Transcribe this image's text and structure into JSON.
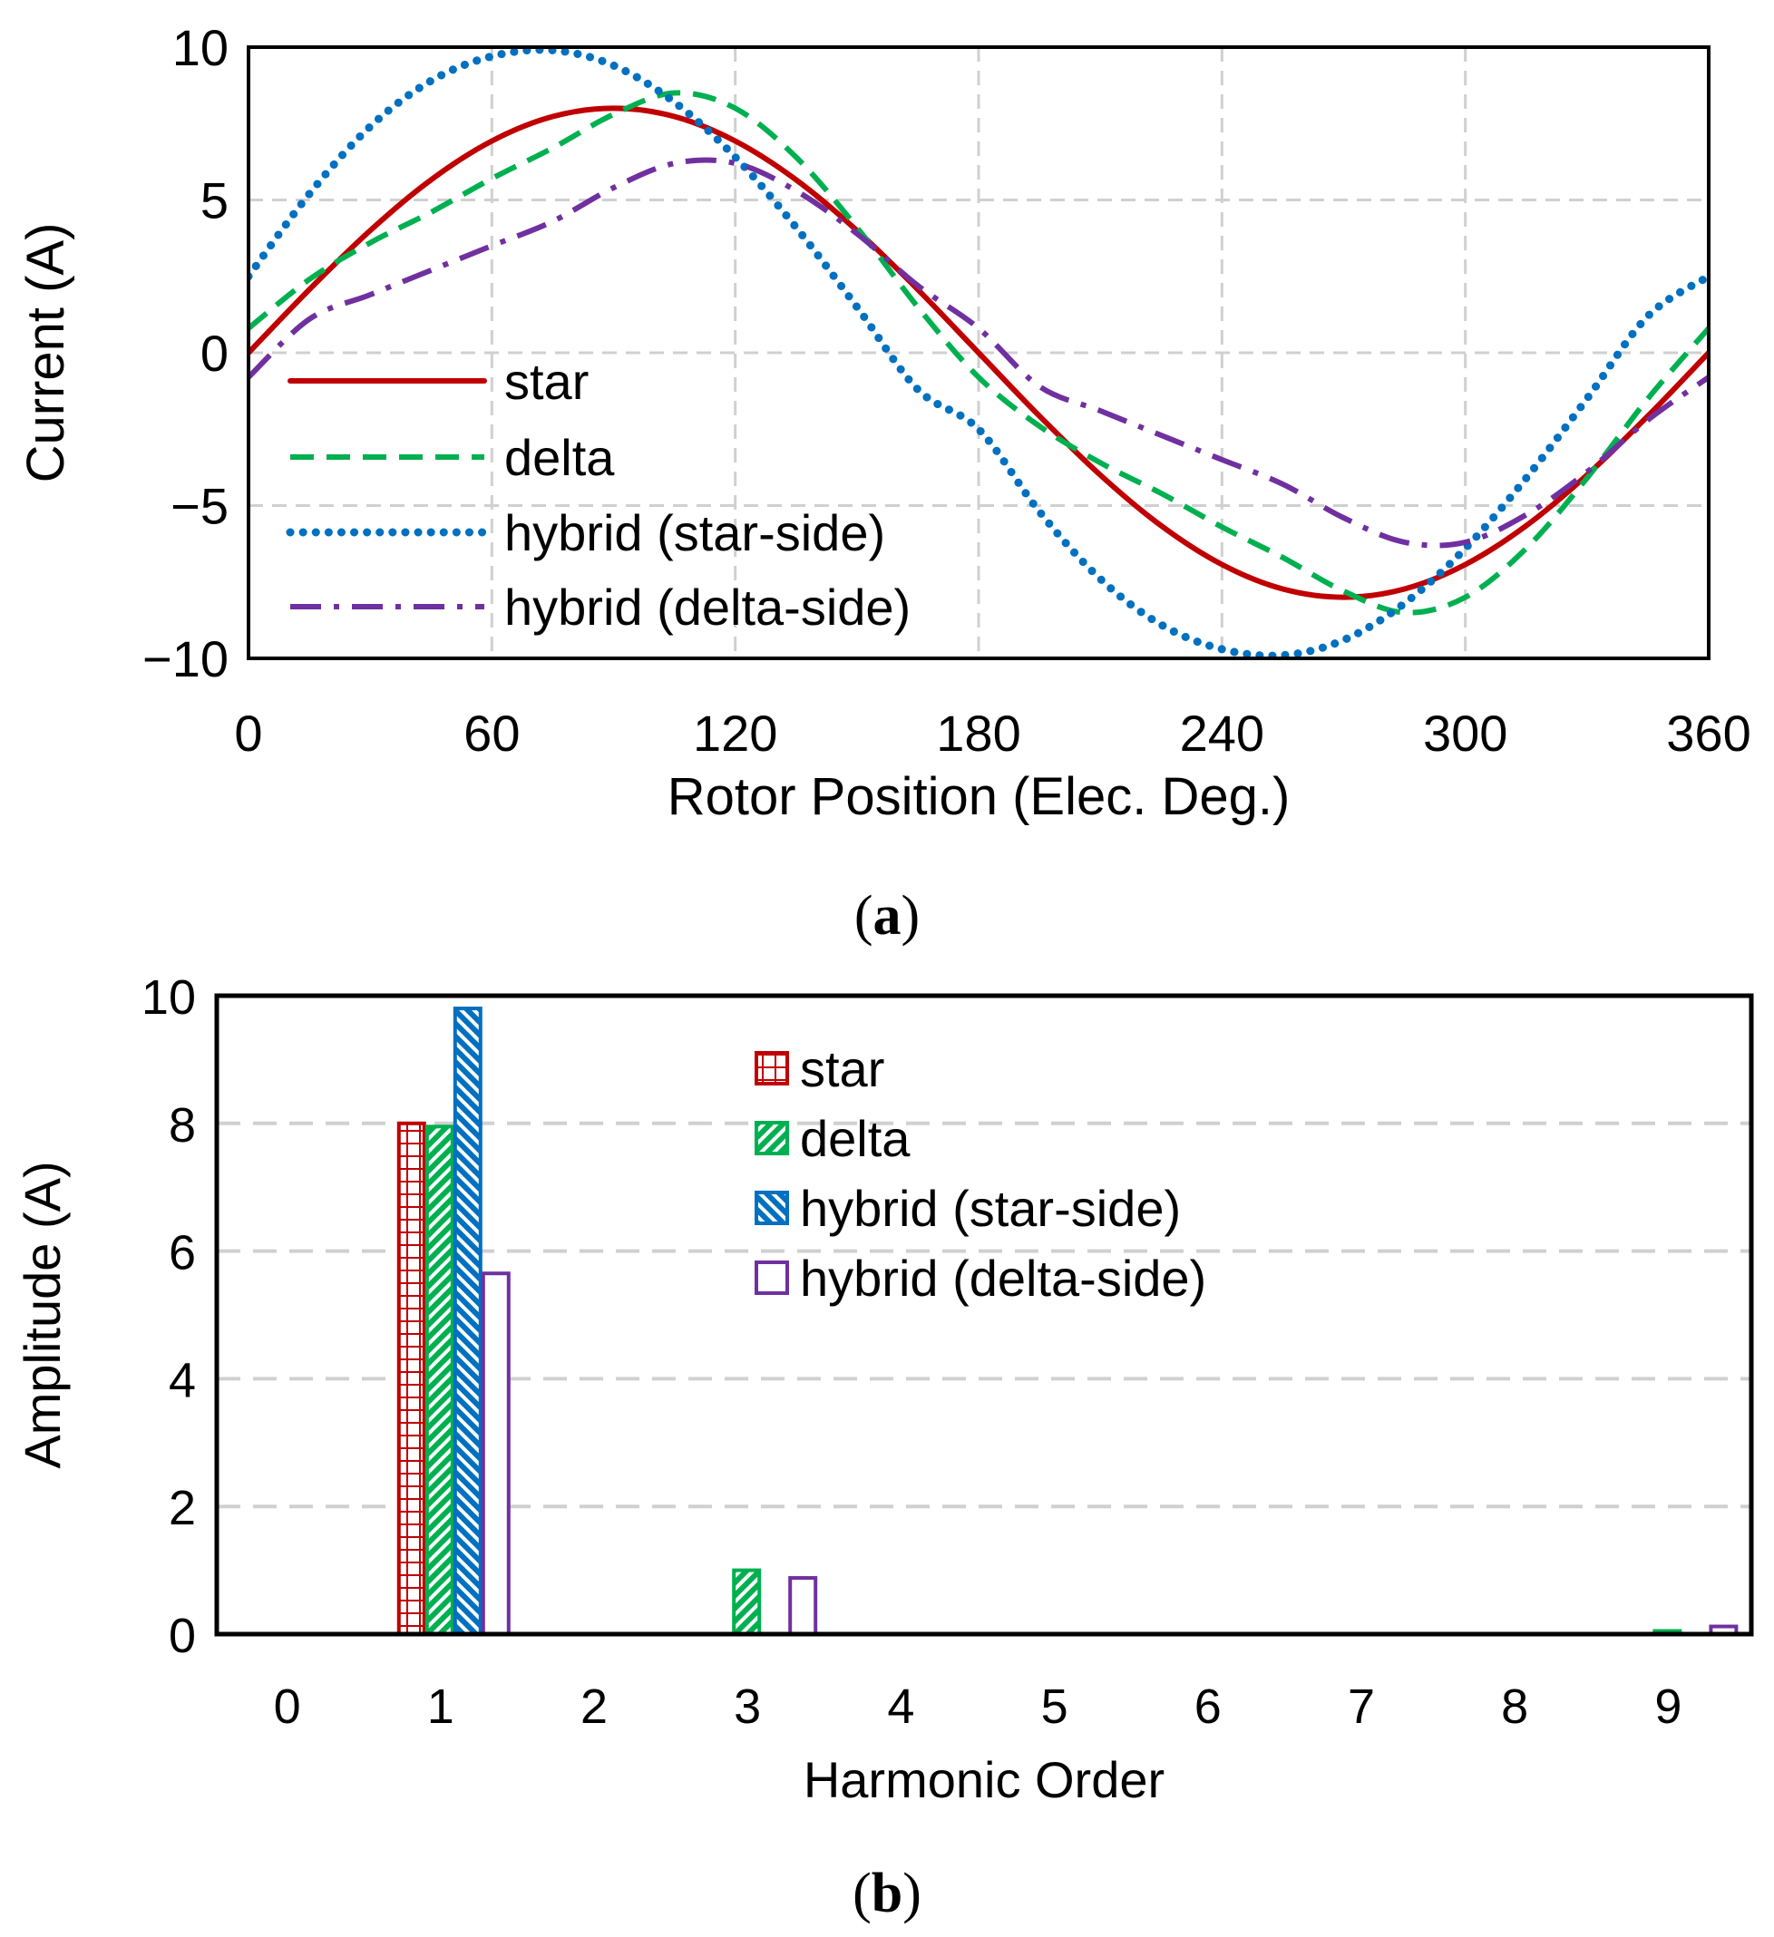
{
  "colors": {
    "star": "#c00000",
    "delta": "#00b050",
    "hybrid_star": "#0070c0",
    "hybrid_delta": "#7030a0",
    "grid": "#d0d0d0",
    "axis": "#000000"
  },
  "chart_data": [
    {
      "id": "a",
      "caption_open": "(",
      "caption_letter": "a",
      "caption_close": ")",
      "type": "line",
      "xlabel": "Rotor Position (Elec. Deg.)",
      "ylabel": "Current (A)",
      "xlim": [
        0,
        360
      ],
      "ylim": [
        -10,
        10
      ],
      "xticks": [
        0,
        60,
        120,
        180,
        240,
        300,
        360
      ],
      "xtick_labels": [
        "0",
        "60",
        "120",
        "180",
        "240",
        "300",
        "360"
      ],
      "yticks": [
        10,
        5,
        0,
        -5,
        -10
      ],
      "ytick_labels": [
        "10",
        "5",
        "0",
        "−5",
        "−10"
      ],
      "grid": true,
      "legend_position": "left",
      "series": [
        {
          "name": "star",
          "style": "solid",
          "color_key": "star",
          "x": [
            0,
            15,
            30,
            45,
            60,
            75,
            90,
            105,
            120,
            135,
            150,
            165,
            180,
            195,
            210,
            225,
            240,
            255,
            270,
            285,
            300,
            315,
            330,
            345,
            360
          ],
          "y": [
            0,
            2.07,
            4.0,
            5.66,
            6.93,
            7.73,
            8.0,
            7.73,
            6.93,
            5.66,
            4.0,
            2.07,
            0,
            -2.07,
            -4.0,
            -5.66,
            -6.93,
            -7.73,
            -8.0,
            -7.73,
            -6.93,
            -5.66,
            -4.0,
            -2.07,
            0
          ]
        },
        {
          "name": "delta",
          "style": "dashed",
          "color_key": "delta",
          "x": [
            0,
            15,
            30,
            45,
            60,
            75,
            90,
            105,
            120,
            135,
            150,
            165,
            180,
            195,
            210,
            225,
            240,
            255,
            270,
            285,
            300,
            315,
            330,
            345,
            360
          ],
          "y": [
            0.8,
            2.4,
            3.6,
            4.6,
            5.7,
            6.7,
            7.8,
            8.5,
            8.0,
            6.4,
            4.1,
            1.5,
            -0.8,
            -2.4,
            -3.6,
            -4.6,
            -5.7,
            -6.7,
            -7.8,
            -8.5,
            -8.0,
            -6.4,
            -4.1,
            -1.5,
            0.8
          ]
        },
        {
          "name": "hybrid (star-side)",
          "style": "dotted",
          "color_key": "hybrid_star",
          "x": [
            0,
            15,
            30,
            45,
            60,
            75,
            90,
            105,
            120,
            135,
            150,
            165,
            180,
            195,
            210,
            225,
            240,
            255,
            270,
            285,
            300,
            315,
            330,
            345,
            360
          ],
          "y": [
            2.5,
            5.2,
            7.4,
            8.9,
            9.7,
            9.9,
            9.4,
            8.2,
            6.4,
            4.1,
            1.5,
            -1.2,
            -2.5,
            -5.2,
            -7.4,
            -8.9,
            -9.7,
            -9.9,
            -9.4,
            -8.2,
            -6.4,
            -4.1,
            -1.5,
            1.2,
            2.5
          ]
        },
        {
          "name": "hybrid (delta-side)",
          "style": "dashdot",
          "color_key": "hybrid_delta",
          "x": [
            0,
            15,
            30,
            45,
            60,
            75,
            90,
            105,
            120,
            135,
            150,
            165,
            180,
            195,
            210,
            225,
            240,
            255,
            270,
            285,
            300,
            315,
            330,
            345,
            360
          ],
          "y": [
            -0.8,
            1.1,
            1.9,
            2.7,
            3.5,
            4.3,
            5.4,
            6.2,
            6.2,
            5.3,
            3.9,
            2.2,
            0.8,
            -1.1,
            -1.9,
            -2.7,
            -3.5,
            -4.3,
            -5.4,
            -6.2,
            -6.2,
            -5.3,
            -3.9,
            -2.2,
            -0.8
          ]
        }
      ]
    },
    {
      "id": "b",
      "caption_open": "(",
      "caption_letter": "b",
      "caption_close": ")",
      "type": "bar",
      "xlabel": "Harmonic Order",
      "ylabel": "Amplitude (A)",
      "categories": [
        "0",
        "1",
        "2",
        "3",
        "4",
        "5",
        "6",
        "7",
        "8",
        "9"
      ],
      "ylim": [
        0,
        10
      ],
      "yticks": [
        10,
        8,
        6,
        4,
        2,
        0
      ],
      "ytick_labels": [
        "10",
        "8",
        "6",
        "4",
        "2",
        "0"
      ],
      "grid": true,
      "legend_position": "top-right",
      "series": [
        {
          "name": "star",
          "pattern": "grid",
          "color_key": "star",
          "values": [
            0,
            8.0,
            0,
            0,
            0,
            0,
            0,
            0,
            0,
            0
          ]
        },
        {
          "name": "delta",
          "pattern": "diag",
          "color_key": "delta",
          "values": [
            0,
            7.95,
            0,
            1.0,
            0,
            0,
            0,
            0,
            0,
            0.05
          ]
        },
        {
          "name": "hybrid (star-side)",
          "pattern": "diag",
          "color_key": "hybrid_star",
          "values": [
            0,
            9.8,
            0,
            0,
            0,
            0,
            0,
            0,
            0,
            0
          ]
        },
        {
          "name": "hybrid (delta-side)",
          "pattern": "none",
          "color_key": "hybrid_delta",
          "values": [
            0,
            5.65,
            0,
            0.88,
            0,
            0,
            0,
            0,
            0,
            0.12
          ]
        }
      ]
    }
  ]
}
